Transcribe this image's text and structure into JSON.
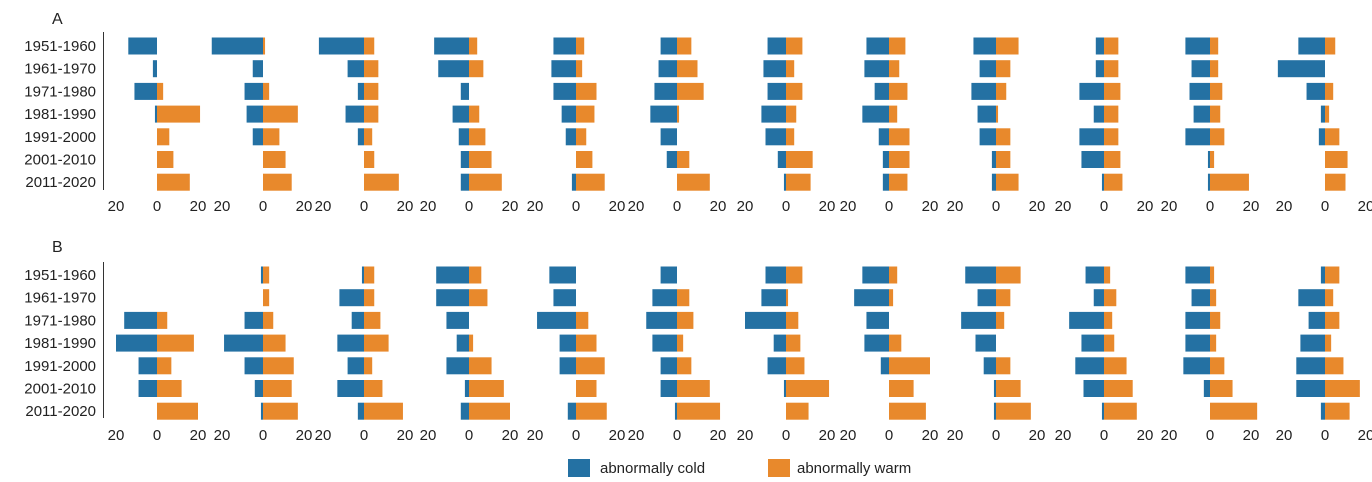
{
  "chart_data": {
    "type": "bar",
    "orientation": "horizontal-diverging",
    "categories": [
      "1951-1960",
      "1961-1970",
      "1971-1980",
      "1981-1990",
      "1991-2000",
      "2001-2010",
      "2011-2020"
    ],
    "tick_labels": [
      "20",
      "0",
      "20"
    ],
    "legend": {
      "placement": "bottom-center",
      "entries": [
        {
          "name": "abnormally cold",
          "color": "#2471a3"
        },
        {
          "name": "abnormally warm",
          "color": "#e8892c"
        }
      ]
    },
    "colors": {
      "cold": "#2471a3",
      "warm": "#e8892c"
    },
    "xlim": [
      -20,
      20
    ],
    "panels": [
      {
        "label": "A",
        "subplots": [
          {
            "cold": [
              14,
              2,
              11,
              1,
              0,
              0,
              0
            ],
            "warm": [
              0,
              0,
              3,
              21,
              6,
              8,
              16
            ]
          },
          {
            "cold": [
              25,
              5,
              9,
              8,
              5,
              0,
              0
            ],
            "warm": [
              1,
              0,
              3,
              17,
              8,
              11,
              14
            ]
          },
          {
            "cold": [
              22,
              8,
              3,
              9,
              3,
              0,
              0
            ],
            "warm": [
              5,
              7,
              7,
              7,
              4,
              5,
              17
            ]
          },
          {
            "cold": [
              17,
              15,
              4,
              8,
              5,
              4,
              4
            ],
            "warm": [
              4,
              7,
              0,
              5,
              8,
              11,
              16
            ]
          },
          {
            "cold": [
              11,
              12,
              11,
              7,
              5,
              0,
              2
            ],
            "warm": [
              4,
              3,
              10,
              9,
              5,
              8,
              14
            ]
          },
          {
            "cold": [
              8,
              9,
              11,
              13,
              8,
              5,
              0
            ],
            "warm": [
              7,
              10,
              13,
              1,
              0,
              6,
              16
            ]
          },
          {
            "cold": [
              9,
              11,
              9,
              12,
              10,
              4,
              1
            ],
            "warm": [
              8,
              4,
              8,
              5,
              4,
              13,
              12
            ]
          },
          {
            "cold": [
              11,
              12,
              7,
              13,
              5,
              3,
              3
            ],
            "warm": [
              8,
              5,
              9,
              4,
              10,
              10,
              9
            ]
          },
          {
            "cold": [
              11,
              8,
              12,
              9,
              8,
              2,
              2
            ],
            "warm": [
              11,
              7,
              5,
              1,
              7,
              7,
              11
            ]
          },
          {
            "cold": [
              4,
              4,
              12,
              5,
              12,
              11,
              1
            ],
            "warm": [
              7,
              7,
              8,
              7,
              7,
              8,
              9
            ]
          },
          {
            "cold": [
              12,
              9,
              10,
              8,
              12,
              1,
              1
            ],
            "warm": [
              4,
              4,
              6,
              5,
              7,
              2,
              19
            ]
          },
          {
            "cold": [
              13,
              23,
              9,
              2,
              3,
              0,
              0
            ],
            "warm": [
              5,
              0,
              4,
              2,
              7,
              11,
              10
            ]
          }
        ]
      },
      {
        "label": "B",
        "subplots": [
          {
            "cold": [
              0,
              0,
              16,
              20,
              9,
              9,
              0
            ],
            "warm": [
              0,
              0,
              5,
              18,
              7,
              12,
              20
            ]
          },
          {
            "cold": [
              1,
              0,
              9,
              19,
              9,
              4,
              1
            ],
            "warm": [
              3,
              3,
              5,
              11,
              15,
              14,
              17
            ]
          },
          {
            "cold": [
              1,
              12,
              6,
              13,
              8,
              13,
              3
            ],
            "warm": [
              5,
              5,
              8,
              12,
              4,
              9,
              19
            ]
          },
          {
            "cold": [
              16,
              16,
              11,
              6,
              11,
              2,
              4
            ],
            "warm": [
              6,
              9,
              0,
              2,
              11,
              17,
              20
            ]
          },
          {
            "cold": [
              13,
              11,
              19,
              8,
              8,
              0,
              4
            ],
            "warm": [
              0,
              0,
              6,
              10,
              14,
              10,
              15
            ]
          },
          {
            "cold": [
              8,
              12,
              15,
              12,
              8,
              8,
              1
            ],
            "warm": [
              0,
              6,
              8,
              3,
              7,
              16,
              21
            ]
          },
          {
            "cold": [
              10,
              12,
              20,
              6,
              9,
              1,
              0
            ],
            "warm": [
              8,
              1,
              6,
              7,
              9,
              21,
              11
            ]
          },
          {
            "cold": [
              13,
              17,
              11,
              12,
              4,
              0,
              0
            ],
            "warm": [
              4,
              2,
              0,
              6,
              20,
              12,
              18
            ]
          },
          {
            "cold": [
              15,
              9,
              17,
              10,
              6,
              1,
              1
            ],
            "warm": [
              12,
              7,
              4,
              0,
              7,
              12,
              17
            ]
          },
          {
            "cold": [
              9,
              5,
              17,
              11,
              14,
              10,
              1
            ],
            "warm": [
              3,
              6,
              4,
              5,
              11,
              14,
              16
            ]
          },
          {
            "cold": [
              12,
              9,
              12,
              12,
              13,
              3,
              0
            ],
            "warm": [
              2,
              3,
              5,
              3,
              7,
              11,
              23
            ]
          },
          {
            "cold": [
              2,
              13,
              8,
              12,
              14,
              14,
              2
            ],
            "warm": [
              7,
              4,
              7,
              3,
              9,
              17,
              12
            ]
          }
        ]
      }
    ]
  }
}
